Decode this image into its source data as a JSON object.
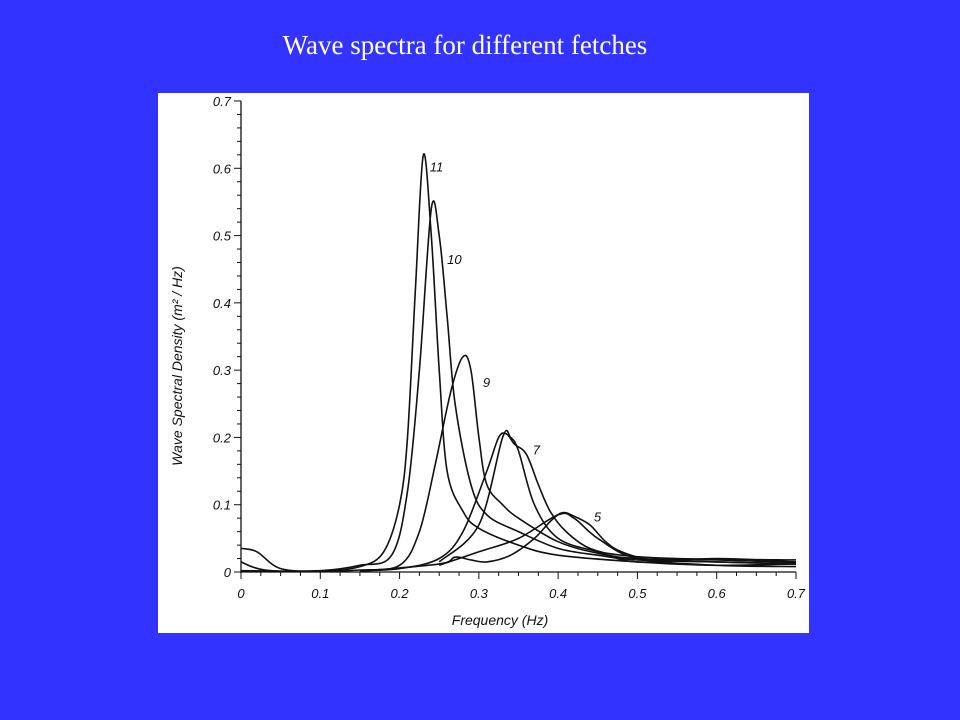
{
  "slide": {
    "title": "Wave spectra for different fetches"
  },
  "chart_data": {
    "type": "line",
    "title": "",
    "xlabel": "Frequency (Hz)",
    "ylabel": "Wave Spectral Density (m² / Hz)",
    "xlim": [
      0,
      0.7
    ],
    "ylim": [
      0,
      0.7
    ],
    "xticks": [
      0,
      0.1,
      0.2,
      0.3,
      0.4,
      0.5,
      0.6,
      0.7
    ],
    "yticks": [
      0,
      0.1,
      0.2,
      0.3,
      0.4,
      0.5,
      0.6,
      0.7
    ],
    "xtick_labels": [
      "0",
      "0.1",
      "0.2",
      "0.3",
      "0.4",
      "0.5",
      "0.6",
      "0.7"
    ],
    "ytick_labels": [
      "0",
      "0.1",
      "0.2",
      "0.3",
      "0.4",
      "0.5",
      "0.6",
      "0.7"
    ],
    "grid": false,
    "legend": "none",
    "series": [
      {
        "label": "11",
        "label_at": [
          0.238,
          0.595
        ],
        "points": [
          [
            0,
            0.015
          ],
          [
            0.03,
            0.003
          ],
          [
            0.1,
            0.001
          ],
          [
            0.15,
            0.008
          ],
          [
            0.18,
            0.03
          ],
          [
            0.2,
            0.1
          ],
          [
            0.21,
            0.2
          ],
          [
            0.22,
            0.42
          ],
          [
            0.23,
            0.62
          ],
          [
            0.24,
            0.5
          ],
          [
            0.25,
            0.3
          ],
          [
            0.26,
            0.15
          ],
          [
            0.28,
            0.09
          ],
          [
            0.3,
            0.065
          ],
          [
            0.35,
            0.04
          ],
          [
            0.4,
            0.025
          ],
          [
            0.5,
            0.015
          ],
          [
            0.6,
            0.01
          ],
          [
            0.7,
            0.012
          ]
        ]
      },
      {
        "label": "10",
        "label_at": [
          0.26,
          0.458
        ],
        "points": [
          [
            0,
            0.035
          ],
          [
            0.02,
            0.03
          ],
          [
            0.05,
            0.005
          ],
          [
            0.1,
            0.002
          ],
          [
            0.15,
            0.01
          ],
          [
            0.19,
            0.025
          ],
          [
            0.21,
            0.12
          ],
          [
            0.225,
            0.3
          ],
          [
            0.24,
            0.54
          ],
          [
            0.25,
            0.5
          ],
          [
            0.26,
            0.38
          ],
          [
            0.27,
            0.25
          ],
          [
            0.29,
            0.13
          ],
          [
            0.31,
            0.085
          ],
          [
            0.35,
            0.06
          ],
          [
            0.4,
            0.035
          ],
          [
            0.45,
            0.025
          ],
          [
            0.5,
            0.018
          ],
          [
            0.6,
            0.015
          ],
          [
            0.7,
            0.012
          ]
        ]
      },
      {
        "label": "9",
        "label_at": [
          0.305,
          0.275
        ],
        "points": [
          [
            0,
            0.002
          ],
          [
            0.1,
            0.001
          ],
          [
            0.15,
            0.003
          ],
          [
            0.2,
            0.01
          ],
          [
            0.225,
            0.06
          ],
          [
            0.245,
            0.16
          ],
          [
            0.265,
            0.27
          ],
          [
            0.28,
            0.32
          ],
          [
            0.29,
            0.3
          ],
          [
            0.3,
            0.2
          ],
          [
            0.31,
            0.13
          ],
          [
            0.33,
            0.1
          ],
          [
            0.35,
            0.08
          ],
          [
            0.4,
            0.045
          ],
          [
            0.45,
            0.028
          ],
          [
            0.5,
            0.02
          ],
          [
            0.6,
            0.018
          ],
          [
            0.7,
            0.014
          ]
        ]
      },
      {
        "label": "7",
        "label_at": [
          0.368,
          0.175
        ],
        "points": [
          [
            0.15,
            0.002
          ],
          [
            0.2,
            0.005
          ],
          [
            0.25,
            0.02
          ],
          [
            0.28,
            0.06
          ],
          [
            0.31,
            0.15
          ],
          [
            0.325,
            0.2
          ],
          [
            0.335,
            0.205
          ],
          [
            0.345,
            0.19
          ],
          [
            0.36,
            0.175
          ],
          [
            0.375,
            0.13
          ],
          [
            0.39,
            0.09
          ],
          [
            0.41,
            0.06
          ],
          [
            0.44,
            0.035
          ],
          [
            0.48,
            0.025
          ],
          [
            0.55,
            0.02
          ],
          [
            0.7,
            0.018
          ]
        ]
      },
      {
        "label": "5",
        "label_at": [
          0.445,
          0.075
        ],
        "points": [
          [
            0.15,
            0.001
          ],
          [
            0.25,
            0.012
          ],
          [
            0.27,
            0.022
          ],
          [
            0.29,
            0.018
          ],
          [
            0.31,
            0.015
          ],
          [
            0.34,
            0.025
          ],
          [
            0.37,
            0.05
          ],
          [
            0.39,
            0.075
          ],
          [
            0.405,
            0.088
          ],
          [
            0.42,
            0.083
          ],
          [
            0.44,
            0.07
          ],
          [
            0.46,
            0.045
          ],
          [
            0.48,
            0.03
          ],
          [
            0.52,
            0.018
          ],
          [
            0.6,
            0.015
          ],
          [
            0.7,
            0.012
          ]
        ]
      },
      {
        "label": "",
        "points": [
          [
            0.25,
            0.015
          ],
          [
            0.3,
            0.07
          ],
          [
            0.33,
            0.2
          ],
          [
            0.34,
            0.2
          ],
          [
            0.35,
            0.18
          ],
          [
            0.37,
            0.1
          ],
          [
            0.4,
            0.05
          ],
          [
            0.45,
            0.03
          ],
          [
            0.5,
            0.015
          ],
          [
            0.6,
            0.02
          ],
          [
            0.7,
            0.015
          ]
        ]
      },
      {
        "label": "",
        "points": [
          [
            0.25,
            0.01
          ],
          [
            0.3,
            0.03
          ],
          [
            0.35,
            0.05
          ],
          [
            0.4,
            0.085
          ],
          [
            0.42,
            0.08
          ],
          [
            0.45,
            0.05
          ],
          [
            0.5,
            0.02
          ],
          [
            0.6,
            0.01
          ],
          [
            0.7,
            0.008
          ]
        ]
      }
    ]
  }
}
